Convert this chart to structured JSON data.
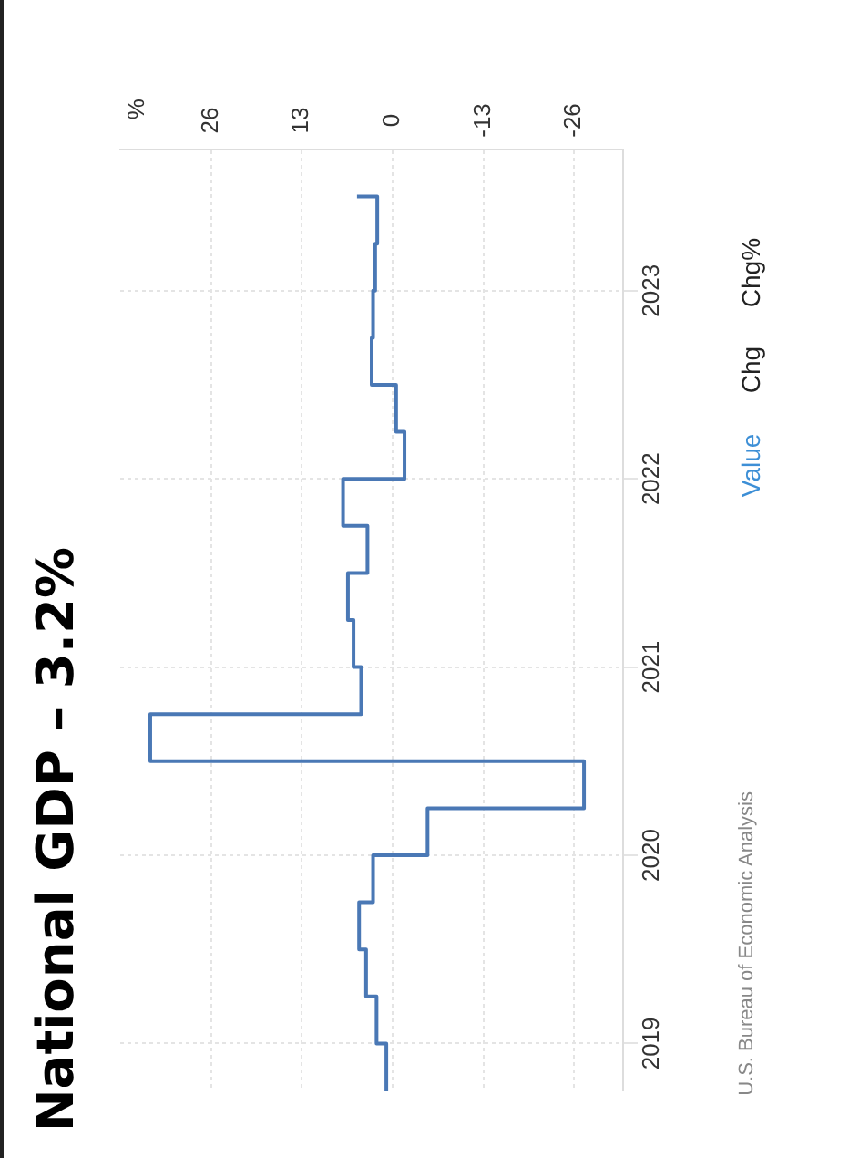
{
  "chart_data": {
    "type": "step",
    "orientation": "horizontal",
    "title": "National GDP – 3.2%",
    "x": [
      "2018-10",
      "2019-01",
      "2019-04",
      "2019-07",
      "2019-10",
      "2020-01",
      "2020-04",
      "2020-07",
      "2020-10",
      "2021-01",
      "2021-04",
      "2021-07",
      "2021-10",
      "2022-01",
      "2022-04",
      "2022-07",
      "2022-10",
      "2023-01",
      "2023-04",
      "2023-07"
    ],
    "series": [
      {
        "color": "#4a78b5",
        "values": [
          0.9,
          2.3,
          3.8,
          4.8,
          2.8,
          -5.0,
          -27.4,
          34.7,
          4.5,
          5.6,
          6.4,
          3.6,
          7.1,
          -1.7,
          -0.5,
          3.0,
          2.8,
          2.5,
          2.2,
          5.1
        ]
      }
    ],
    "ylim": [
      "2018-10",
      "2023-10"
    ],
    "yticks": [
      "2019",
      "2020",
      "2021",
      "2022",
      "2023"
    ],
    "xlim": [
      39,
      -33
    ],
    "xticks": [
      26,
      13,
      0,
      -13,
      -26
    ],
    "grid": true,
    "legend": false,
    "annotations": [
      "%",
      "U.S. Bureau of Economic Analysis",
      "Value",
      "Chg",
      "Chg%"
    ]
  }
}
